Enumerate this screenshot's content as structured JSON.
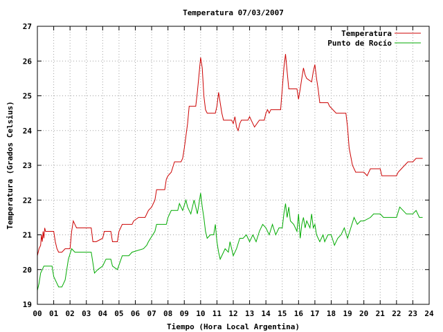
{
  "chart_data": {
    "type": "line",
    "title": "Temperatura 07/03/2007",
    "xlabel": "Tiempo (Hora Local Argentina)",
    "ylabel": "Temperatura (Grados Celsius)",
    "xlim": [
      0,
      24
    ],
    "ylim": [
      19,
      27
    ],
    "x_ticks": [
      "00",
      "01",
      "02",
      "03",
      "04",
      "05",
      "06",
      "07",
      "08",
      "09",
      "10",
      "11",
      "12",
      "13",
      "14",
      "15",
      "16",
      "17",
      "18",
      "19",
      "20",
      "21",
      "22",
      "23",
      "24"
    ],
    "y_ticks": [
      "19",
      "20",
      "21",
      "22",
      "23",
      "24",
      "25",
      "26",
      "27"
    ],
    "grid": true,
    "legend_position": "top-right",
    "series": [
      {
        "name": "Temperatura",
        "color": "#cc0000",
        "points": [
          [
            0.0,
            20.4
          ],
          [
            0.1,
            20.6
          ],
          [
            0.2,
            20.7
          ],
          [
            0.25,
            21.0
          ],
          [
            0.3,
            20.8
          ],
          [
            0.35,
            21.1
          ],
          [
            0.4,
            20.9
          ],
          [
            0.45,
            21.2
          ],
          [
            0.5,
            21.1
          ],
          [
            1.0,
            21.1
          ],
          [
            1.1,
            20.8
          ],
          [
            1.2,
            20.6
          ],
          [
            1.3,
            20.5
          ],
          [
            1.5,
            20.5
          ],
          [
            1.7,
            20.6
          ],
          [
            2.0,
            20.6
          ],
          [
            2.1,
            21.1
          ],
          [
            2.2,
            21.4
          ],
          [
            2.3,
            21.3
          ],
          [
            2.4,
            21.2
          ],
          [
            2.5,
            21.2
          ],
          [
            3.3,
            21.2
          ],
          [
            3.4,
            20.8
          ],
          [
            3.6,
            20.8
          ],
          [
            4.0,
            20.9
          ],
          [
            4.1,
            21.1
          ],
          [
            4.5,
            21.1
          ],
          [
            4.6,
            20.8
          ],
          [
            4.9,
            20.8
          ],
          [
            5.0,
            21.1
          ],
          [
            5.2,
            21.3
          ],
          [
            5.5,
            21.3
          ],
          [
            5.8,
            21.3
          ],
          [
            5.9,
            21.4
          ],
          [
            6.2,
            21.5
          ],
          [
            6.6,
            21.5
          ],
          [
            6.8,
            21.7
          ],
          [
            7.0,
            21.8
          ],
          [
            7.2,
            22.0
          ],
          [
            7.3,
            22.3
          ],
          [
            7.5,
            22.3
          ],
          [
            7.8,
            22.3
          ],
          [
            7.9,
            22.6
          ],
          [
            8.0,
            22.7
          ],
          [
            8.2,
            22.8
          ],
          [
            8.4,
            23.1
          ],
          [
            8.8,
            23.1
          ],
          [
            8.9,
            23.2
          ],
          [
            9.0,
            23.5
          ],
          [
            9.2,
            24.2
          ],
          [
            9.3,
            24.7
          ],
          [
            9.5,
            24.7
          ],
          [
            9.7,
            24.7
          ],
          [
            9.8,
            25.1
          ],
          [
            9.9,
            25.6
          ],
          [
            10.0,
            26.1
          ],
          [
            10.1,
            25.8
          ],
          [
            10.2,
            25.0
          ],
          [
            10.3,
            24.6
          ],
          [
            10.4,
            24.5
          ],
          [
            10.9,
            24.5
          ],
          [
            11.0,
            24.7
          ],
          [
            11.1,
            25.1
          ],
          [
            11.2,
            24.8
          ],
          [
            11.3,
            24.5
          ],
          [
            11.4,
            24.3
          ],
          [
            11.9,
            24.3
          ],
          [
            12.0,
            24.2
          ],
          [
            12.1,
            24.4
          ],
          [
            12.2,
            24.1
          ],
          [
            12.3,
            24.0
          ],
          [
            12.4,
            24.2
          ],
          [
            12.5,
            24.3
          ],
          [
            12.9,
            24.3
          ],
          [
            13.0,
            24.4
          ],
          [
            13.1,
            24.3
          ],
          [
            13.2,
            24.2
          ],
          [
            13.3,
            24.1
          ],
          [
            13.6,
            24.3
          ],
          [
            13.9,
            24.3
          ],
          [
            14.0,
            24.5
          ],
          [
            14.1,
            24.6
          ],
          [
            14.2,
            24.5
          ],
          [
            14.3,
            24.6
          ],
          [
            14.9,
            24.6
          ],
          [
            15.0,
            25.2
          ],
          [
            15.1,
            25.8
          ],
          [
            15.2,
            26.2
          ],
          [
            15.3,
            25.7
          ],
          [
            15.4,
            25.2
          ],
          [
            15.9,
            25.2
          ],
          [
            16.0,
            24.9
          ],
          [
            16.1,
            25.2
          ],
          [
            16.2,
            25.5
          ],
          [
            16.3,
            25.8
          ],
          [
            16.4,
            25.6
          ],
          [
            16.5,
            25.5
          ],
          [
            16.8,
            25.4
          ],
          [
            16.9,
            25.7
          ],
          [
            17.0,
            25.9
          ],
          [
            17.1,
            25.5
          ],
          [
            17.2,
            25.2
          ],
          [
            17.3,
            24.8
          ],
          [
            17.8,
            24.8
          ],
          [
            17.9,
            24.7
          ],
          [
            18.1,
            24.6
          ],
          [
            18.3,
            24.5
          ],
          [
            18.9,
            24.5
          ],
          [
            19.0,
            24.1
          ],
          [
            19.1,
            23.5
          ],
          [
            19.3,
            23.0
          ],
          [
            19.5,
            22.8
          ],
          [
            20.0,
            22.8
          ],
          [
            20.2,
            22.7
          ],
          [
            20.4,
            22.9
          ],
          [
            21.0,
            22.9
          ],
          [
            21.1,
            22.7
          ],
          [
            22.0,
            22.7
          ],
          [
            22.1,
            22.8
          ],
          [
            22.3,
            22.9
          ],
          [
            22.5,
            23.0
          ],
          [
            22.7,
            23.1
          ],
          [
            23.0,
            23.1
          ],
          [
            23.2,
            23.2
          ],
          [
            23.6,
            23.2
          ]
        ]
      },
      {
        "name": "Punto de Rocío",
        "color": "#00aa00",
        "points": [
          [
            0.0,
            19.4
          ],
          [
            0.1,
            19.6
          ],
          [
            0.2,
            19.9
          ],
          [
            0.3,
            20.0
          ],
          [
            0.4,
            20.1
          ],
          [
            0.9,
            20.1
          ],
          [
            1.0,
            19.8
          ],
          [
            1.2,
            19.6
          ],
          [
            1.3,
            19.5
          ],
          [
            1.5,
            19.5
          ],
          [
            1.7,
            19.7
          ],
          [
            1.9,
            20.3
          ],
          [
            2.1,
            20.6
          ],
          [
            2.3,
            20.5
          ],
          [
            2.5,
            20.5
          ],
          [
            3.3,
            20.5
          ],
          [
            3.5,
            19.9
          ],
          [
            3.7,
            20.0
          ],
          [
            4.0,
            20.1
          ],
          [
            4.2,
            20.3
          ],
          [
            4.5,
            20.3
          ],
          [
            4.6,
            20.1
          ],
          [
            4.9,
            20.0
          ],
          [
            5.2,
            20.4
          ],
          [
            5.6,
            20.4
          ],
          [
            5.8,
            20.5
          ],
          [
            6.5,
            20.6
          ],
          [
            6.7,
            20.7
          ],
          [
            6.8,
            20.8
          ],
          [
            7.2,
            21.1
          ],
          [
            7.3,
            21.3
          ],
          [
            7.9,
            21.3
          ],
          [
            8.0,
            21.5
          ],
          [
            8.2,
            21.7
          ],
          [
            8.6,
            21.7
          ],
          [
            8.7,
            21.9
          ],
          [
            8.9,
            21.7
          ],
          [
            9.1,
            22.0
          ],
          [
            9.2,
            21.8
          ],
          [
            9.3,
            21.7
          ],
          [
            9.4,
            21.6
          ],
          [
            9.5,
            21.8
          ],
          [
            9.6,
            22.0
          ],
          [
            9.7,
            21.8
          ],
          [
            9.8,
            21.6
          ],
          [
            9.9,
            21.9
          ],
          [
            10.0,
            22.2
          ],
          [
            10.1,
            21.8
          ],
          [
            10.2,
            21.5
          ],
          [
            10.3,
            21.1
          ],
          [
            10.4,
            20.9
          ],
          [
            10.6,
            21.0
          ],
          [
            10.8,
            21.0
          ],
          [
            10.9,
            21.3
          ],
          [
            11.0,
            20.8
          ],
          [
            11.1,
            20.5
          ],
          [
            11.2,
            20.3
          ],
          [
            11.4,
            20.5
          ],
          [
            11.5,
            20.6
          ],
          [
            11.7,
            20.5
          ],
          [
            11.8,
            20.8
          ],
          [
            12.0,
            20.4
          ],
          [
            12.2,
            20.6
          ],
          [
            12.4,
            20.9
          ],
          [
            12.6,
            20.9
          ],
          [
            12.8,
            21.0
          ],
          [
            13.0,
            20.8
          ],
          [
            13.2,
            21.0
          ],
          [
            13.4,
            20.8
          ],
          [
            13.6,
            21.1
          ],
          [
            13.8,
            21.3
          ],
          [
            14.0,
            21.2
          ],
          [
            14.2,
            21.0
          ],
          [
            14.4,
            21.3
          ],
          [
            14.6,
            21.0
          ],
          [
            14.8,
            21.2
          ],
          [
            15.0,
            21.2
          ],
          [
            15.1,
            21.6
          ],
          [
            15.2,
            21.9
          ],
          [
            15.3,
            21.5
          ],
          [
            15.4,
            21.8
          ],
          [
            15.5,
            21.4
          ],
          [
            15.7,
            21.3
          ],
          [
            15.9,
            21.1
          ],
          [
            16.0,
            21.6
          ],
          [
            16.1,
            20.9
          ],
          [
            16.2,
            21.3
          ],
          [
            16.3,
            21.5
          ],
          [
            16.4,
            21.2
          ],
          [
            16.5,
            21.4
          ],
          [
            16.7,
            21.2
          ],
          [
            16.8,
            21.6
          ],
          [
            16.9,
            21.2
          ],
          [
            17.0,
            21.3
          ],
          [
            17.1,
            21.0
          ],
          [
            17.3,
            20.8
          ],
          [
            17.5,
            21.0
          ],
          [
            17.6,
            20.8
          ],
          [
            17.8,
            21.0
          ],
          [
            18.0,
            21.0
          ],
          [
            18.2,
            20.7
          ],
          [
            18.4,
            20.9
          ],
          [
            18.6,
            21.0
          ],
          [
            18.8,
            21.2
          ],
          [
            19.0,
            20.9
          ],
          [
            19.2,
            21.2
          ],
          [
            19.4,
            21.5
          ],
          [
            19.6,
            21.3
          ],
          [
            19.8,
            21.4
          ],
          [
            20.0,
            21.4
          ],
          [
            20.4,
            21.5
          ],
          [
            20.6,
            21.6
          ],
          [
            21.0,
            21.6
          ],
          [
            21.2,
            21.5
          ],
          [
            22.0,
            21.5
          ],
          [
            22.2,
            21.8
          ],
          [
            22.4,
            21.7
          ],
          [
            22.6,
            21.6
          ],
          [
            23.0,
            21.6
          ],
          [
            23.2,
            21.7
          ],
          [
            23.4,
            21.5
          ],
          [
            23.6,
            21.5
          ]
        ]
      }
    ]
  }
}
